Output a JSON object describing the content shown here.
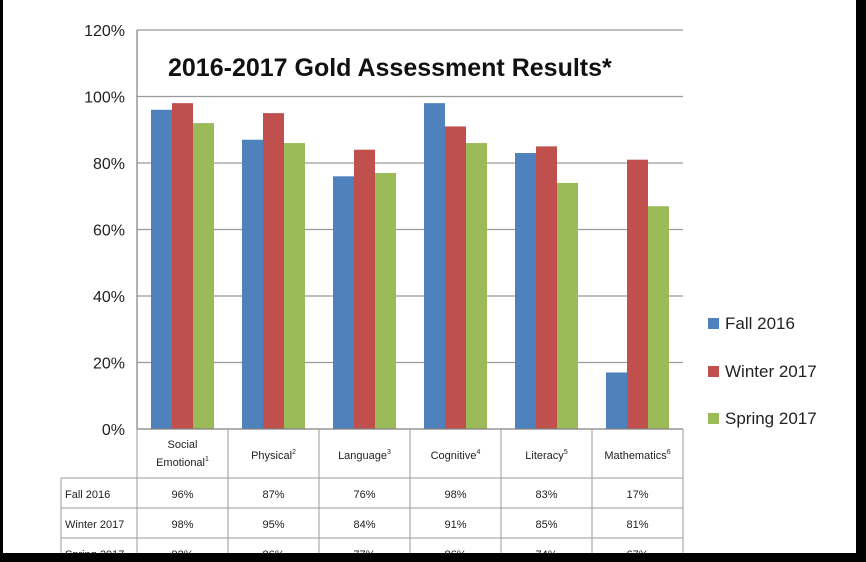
{
  "chart_data": {
    "type": "bar",
    "title": "2016-2017 Gold Assessment Results*",
    "categories": [
      {
        "name": "Social Emotional",
        "lines": [
          "Social",
          "Emotional"
        ],
        "note": "1"
      },
      {
        "name": "Physical",
        "lines": [
          "Physical"
        ],
        "note": "2"
      },
      {
        "name": "Language",
        "lines": [
          "Language"
        ],
        "note": "3"
      },
      {
        "name": "Cognitive",
        "lines": [
          "Cognitive"
        ],
        "note": "4"
      },
      {
        "name": "Literacy",
        "lines": [
          "Literacy"
        ],
        "note": "5"
      },
      {
        "name": "Mathematics",
        "lines": [
          "Mathematics"
        ],
        "note": "6"
      }
    ],
    "series": [
      {
        "name": "Fall 2016",
        "color": "#4f81bd",
        "values": [
          96,
          87,
          76,
          98,
          83,
          17
        ],
        "labels": [
          "96%",
          "87%",
          "76%",
          "98%",
          "83%",
          "17%"
        ]
      },
      {
        "name": "Winter 2017",
        "color": "#c0504d",
        "values": [
          98,
          95,
          84,
          91,
          85,
          81
        ],
        "labels": [
          "98%",
          "95%",
          "84%",
          "91%",
          "85%",
          "81%"
        ]
      },
      {
        "name": "Spring 2017",
        "color": "#9bbb59",
        "values": [
          92,
          86,
          77,
          86,
          74,
          67
        ],
        "labels": null
      }
    ],
    "yaxis": {
      "min": 0,
      "max": 120,
      "step": 20,
      "tick_labels": [
        "0%",
        "20%",
        "40%",
        "60%",
        "80%",
        "100%",
        "120%"
      ]
    },
    "grid": true,
    "legend_position": "right",
    "data_table": true
  }
}
